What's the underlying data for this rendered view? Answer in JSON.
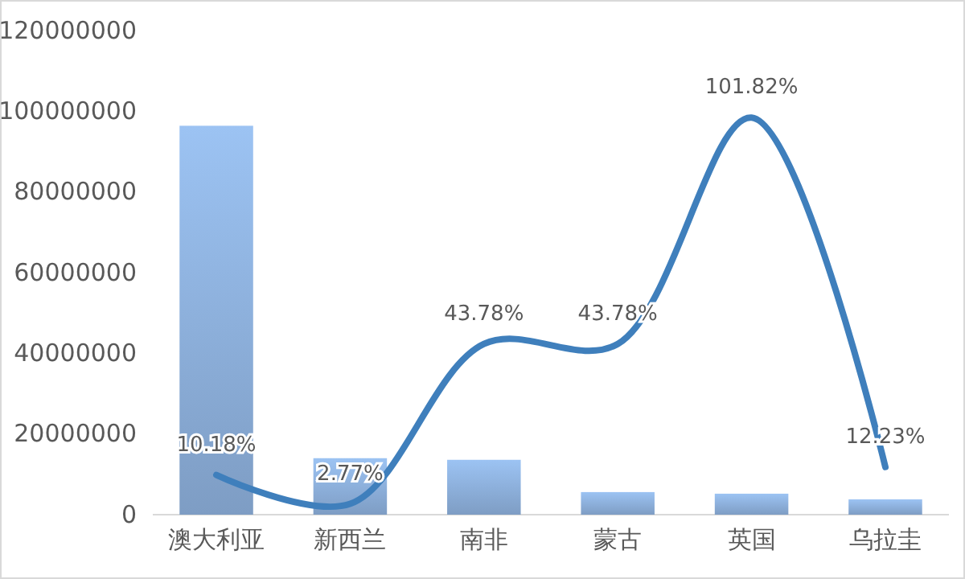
{
  "chart_data": {
    "type": "bar",
    "categories": [
      "澳大利亚",
      "新西兰",
      "南非",
      "蒙古",
      "英国",
      "乌拉圭"
    ],
    "ylim": [
      0,
      120000000
    ],
    "yticks": [
      0,
      20000000,
      40000000,
      60000000,
      80000000,
      100000000,
      120000000
    ],
    "grid": false,
    "series": [
      {
        "color": "#8fb2de",
        "values": [
          96400000,
          14000000,
          13600000,
          5600000,
          5200000,
          3800000
        ]
      },
      {
        "type": "line",
        "axis": "y2",
        "color": "#3f7fbc",
        "values": [
          10.18,
          2.77,
          43.78,
          43.78,
          101.82,
          12.23
        ],
        "value_labels": [
          "10.18%",
          "2.77%",
          "43.78%",
          "43.78%",
          "101.82%",
          "12.23%"
        ]
      }
    ]
  }
}
